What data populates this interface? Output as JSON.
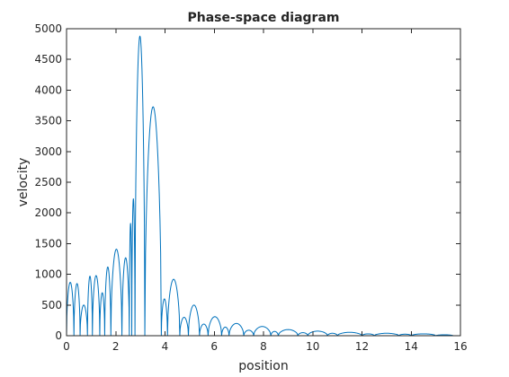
{
  "chart_data": {
    "type": "line",
    "title": "Phase-space diagram",
    "xlabel": "position",
    "ylabel": "velocity",
    "xlim": [
      0,
      16
    ],
    "ylim": [
      0,
      5000
    ],
    "grid": false,
    "xticks": [
      0,
      2,
      4,
      6,
      8,
      10,
      12,
      14,
      16
    ],
    "yticks": [
      0,
      500,
      1000,
      1500,
      2000,
      2500,
      3000,
      3500,
      4000,
      4500,
      5000
    ],
    "series_color": "#0072bd",
    "series": [
      {
        "arches": [
          {
            "x0": 0.0,
            "x1": 0.3,
            "peak": 870
          },
          {
            "x0": 0.3,
            "x1": 0.55,
            "peak": 850
          },
          {
            "x0": 0.55,
            "x1": 0.85,
            "peak": 500
          },
          {
            "x0": 0.85,
            "x1": 1.05,
            "peak": 970
          },
          {
            "x0": 1.05,
            "x1": 1.35,
            "peak": 980
          },
          {
            "x0": 1.35,
            "x1": 1.55,
            "peak": 700
          },
          {
            "x0": 1.55,
            "x1": 1.8,
            "peak": 1120
          },
          {
            "x0": 1.8,
            "x1": 2.25,
            "peak": 1410
          },
          {
            "x0": 2.25,
            "x1": 2.55,
            "peak": 1270
          },
          {
            "x0": 2.55,
            "x1": 2.65,
            "peak": 1830
          },
          {
            "x0": 2.65,
            "x1": 2.78,
            "peak": 2230
          },
          {
            "x0": 2.78,
            "x1": 3.18,
            "peak": 4880
          },
          {
            "x0": 3.18,
            "x1": 3.85,
            "peak": 3730
          },
          {
            "x0": 3.85,
            "x1": 4.1,
            "peak": 600
          },
          {
            "x0": 4.1,
            "x1": 4.6,
            "peak": 920
          },
          {
            "x0": 4.6,
            "x1": 4.95,
            "peak": 300
          },
          {
            "x0": 4.95,
            "x1": 5.4,
            "peak": 500
          },
          {
            "x0": 5.4,
            "x1": 5.75,
            "peak": 190
          },
          {
            "x0": 5.75,
            "x1": 6.3,
            "peak": 310
          },
          {
            "x0": 6.3,
            "x1": 6.6,
            "peak": 140
          },
          {
            "x0": 6.6,
            "x1": 7.2,
            "peak": 200
          },
          {
            "x0": 7.2,
            "x1": 7.6,
            "peak": 90
          },
          {
            "x0": 7.6,
            "x1": 8.3,
            "peak": 150
          },
          {
            "x0": 8.3,
            "x1": 8.6,
            "peak": 70
          },
          {
            "x0": 8.6,
            "x1": 9.4,
            "peak": 100
          },
          {
            "x0": 9.4,
            "x1": 9.8,
            "peak": 50
          },
          {
            "x0": 9.8,
            "x1": 10.6,
            "peak": 75
          },
          {
            "x0": 10.6,
            "x1": 11.0,
            "peak": 40
          },
          {
            "x0": 11.0,
            "x1": 12.0,
            "peak": 55
          },
          {
            "x0": 12.0,
            "x1": 12.5,
            "peak": 30
          },
          {
            "x0": 12.5,
            "x1": 13.5,
            "peak": 40
          },
          {
            "x0": 13.5,
            "x1": 14.0,
            "peak": 25
          },
          {
            "x0": 14.0,
            "x1": 15.0,
            "peak": 30
          },
          {
            "x0": 15.0,
            "x1": 15.7,
            "peak": 15
          }
        ]
      }
    ]
  }
}
